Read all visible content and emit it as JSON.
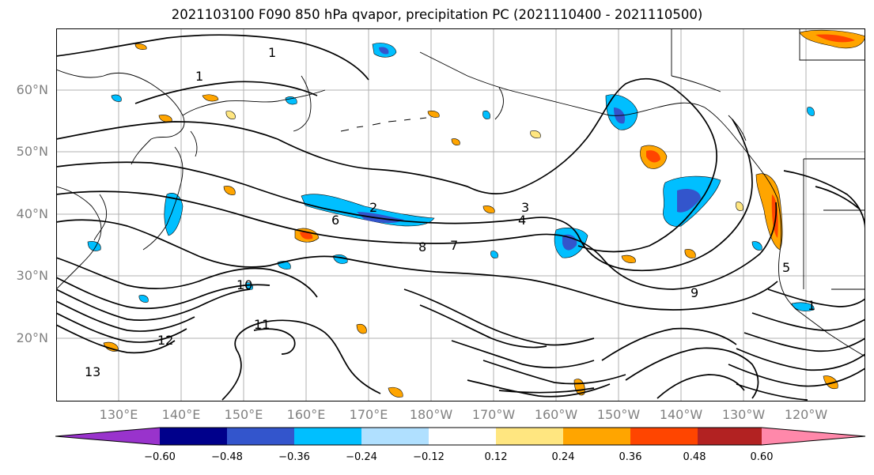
{
  "title": "2021103100 F090 850 hPa qvapor, precipitation PC (2021110400 - 2021110500)",
  "map": {
    "lat_labels": [
      "60°N",
      "50°N",
      "40°N",
      "30°N",
      "20°N"
    ],
    "lon_labels": [
      "130°E",
      "140°E",
      "150°E",
      "160°E",
      "170°E",
      "180°W",
      "170°W",
      "160°W",
      "150°W",
      "140°W",
      "130°W",
      "120°W"
    ],
    "grid": true,
    "contour_labels": [
      "1",
      "1",
      "1",
      "2",
      "3",
      "4",
      "5",
      "6",
      "7",
      "8",
      "9",
      "10",
      "11",
      "12",
      "13"
    ]
  },
  "colorbar": {
    "extend": "both",
    "ticks": [
      "−0.60",
      "−0.48",
      "−0.36",
      "−0.24",
      "−0.12",
      "0.12",
      "0.24",
      "0.36",
      "0.48",
      "0.60"
    ],
    "colors": [
      "#9933cc",
      "#00008b",
      "#3355cc",
      "#00bfff",
      "#b0e0ff",
      "#ffffff",
      "#ffe680",
      "#ffa500",
      "#ff4500",
      "#b22222",
      "#ff88aa"
    ]
  }
}
